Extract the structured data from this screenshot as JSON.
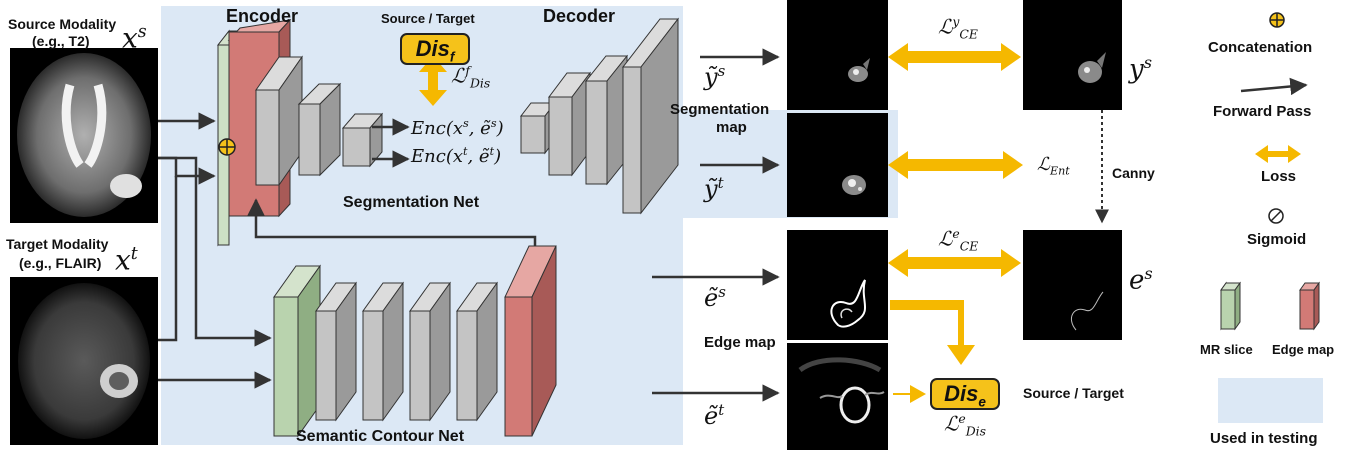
{
  "inputs": {
    "source_title": "Source Modality",
    "source_example": "(e.g., T2)",
    "source_var": "x",
    "source_sup": "s",
    "target_title": "Target Modality",
    "target_example": "(e.g., FLAIR)",
    "target_var": "x",
    "target_sup": "t"
  },
  "network": {
    "encoder_label": "Encoder",
    "decoder_label": "Decoder",
    "source_target_top": "Source / Target",
    "seg_net_label": "Segmentation Net",
    "contour_net_label": "Semantic Contour Net"
  },
  "features": {
    "enc_source": "Enc(x",
    "enc_source_sup": "s",
    "enc_source_mid": ", ẽ",
    "enc_source_sup2": "s",
    "enc_source_end": ")",
    "enc_target": "Enc(x",
    "enc_target_sup": "t",
    "enc_target_mid": ", ẽ",
    "enc_target_sup2": "t",
    "enc_target_end": ")"
  },
  "discriminators": {
    "dis_f": "Dis",
    "dis_f_sub": "f",
    "dis_e": "Dis",
    "dis_e_sub": "e"
  },
  "losses": {
    "l_dis_f": "ℒ",
    "l_dis_f_sup": "f",
    "l_dis_f_sub": "Dis",
    "l_ce_y": "ℒ",
    "l_ce_y_sup": "y",
    "l_ce_y_sub": "CE",
    "l_ent": "ℒ",
    "l_ent_sub": "Ent",
    "l_ce_e": "ℒ",
    "l_ce_e_sup": "e",
    "l_ce_e_sub": "CE",
    "l_dis_e": "ℒ",
    "l_dis_e_sup": "e",
    "l_dis_e_sub": "Dis"
  },
  "outputs": {
    "y_s_pred": "ỹ",
    "y_s_pred_sup": "s",
    "y_t_pred": "ỹ",
    "y_t_pred_sup": "t",
    "seg_map_label_1": "Segmentation",
    "seg_map_label_2": "map",
    "e_s_pred": "ẽ",
    "e_s_pred_sup": "s",
    "e_t_pred": "ẽ",
    "e_t_pred_sup": "t",
    "edge_map_label": "Edge map",
    "y_s": "y",
    "y_s_sup": "s",
    "e_s": "e",
    "e_s_sup": "s",
    "canny_label": "Canny",
    "source_target_bottom": "Source / Target"
  },
  "legend": {
    "concat": "Concatenation",
    "forward": "Forward Pass",
    "loss": "Loss",
    "sigmoid": "Sigmoid",
    "mr_slice": "MR slice",
    "edge_map": "Edge map",
    "testing": "Used in testing"
  },
  "colors": {
    "testing_bg": "#dce8f5",
    "loss_arrow": "#f5b800",
    "mr_slice": "#b9d3ae",
    "edge_map": "#d27a76",
    "block": "#c4c4c4"
  }
}
